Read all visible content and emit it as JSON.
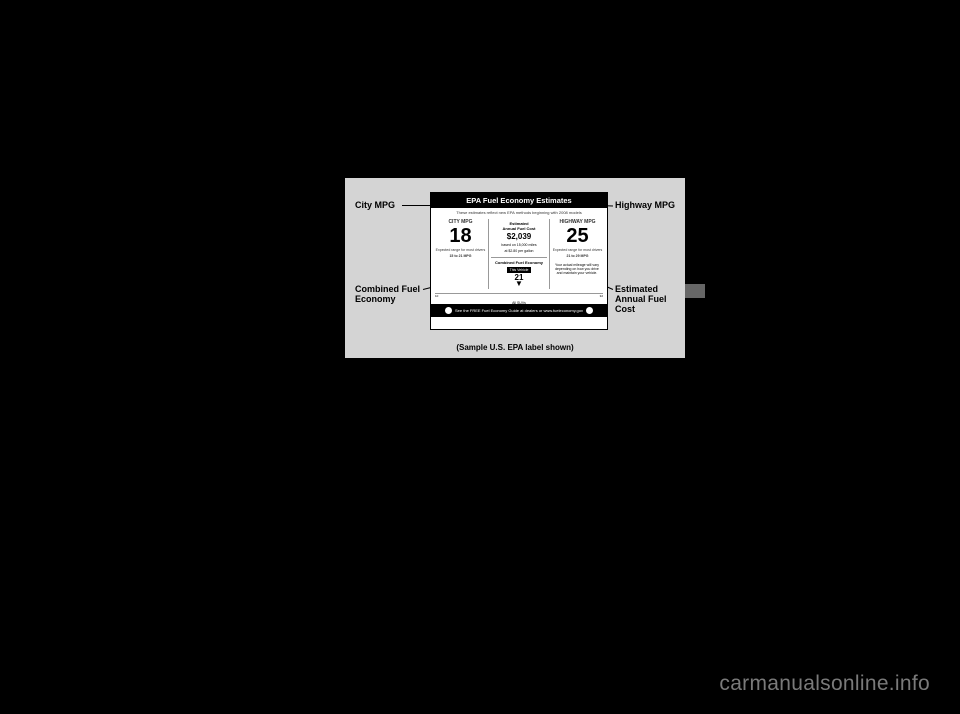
{
  "label": {
    "header": "EPA Fuel Economy Estimates",
    "subheader": "These estimates reflect new EPA methods beginning with 2008 models",
    "city": {
      "label": "CITY MPG",
      "value": "18",
      "range_text": "Expected range for most drivers",
      "range": "15 to 21 MPG"
    },
    "highway": {
      "label": "HIGHWAY MPG",
      "value": "25",
      "range_text": "Expected range for most drivers",
      "range": "21 to 29 MPG"
    },
    "cost": {
      "label1": "Estimated",
      "label2": "Annual Fuel Cost",
      "value": "$2,039",
      "basis1": "based on 15,000 miles",
      "basis2": "at $2.80 per gallon"
    },
    "combined": {
      "label": "Combined Fuel Economy",
      "vehicle": "This Vehicle",
      "value": "21",
      "scale_low": "10",
      "scale_high": "32",
      "category": "All SUVs"
    },
    "right_note": "Your actual mileage will vary depending on how you drive and maintain your vehicle.",
    "footer": "See the FREE Fuel Economy Guide at dealers or www.fueleconomy.gov",
    "sample_caption": "(Sample U.S. EPA label shown)"
  },
  "callouts": {
    "city": "City MPG",
    "highway": "Highway MPG",
    "combined": "Combined Fuel Economy",
    "cost": "Estimated Annual Fuel Cost"
  },
  "watermark": "carmanualsonline.info",
  "colors": {
    "page_bg": "#000000",
    "label_bg": "#d4d4d4",
    "panel_bg": "#ffffff",
    "text": "#000000",
    "watermark": "#7a7a7a"
  }
}
